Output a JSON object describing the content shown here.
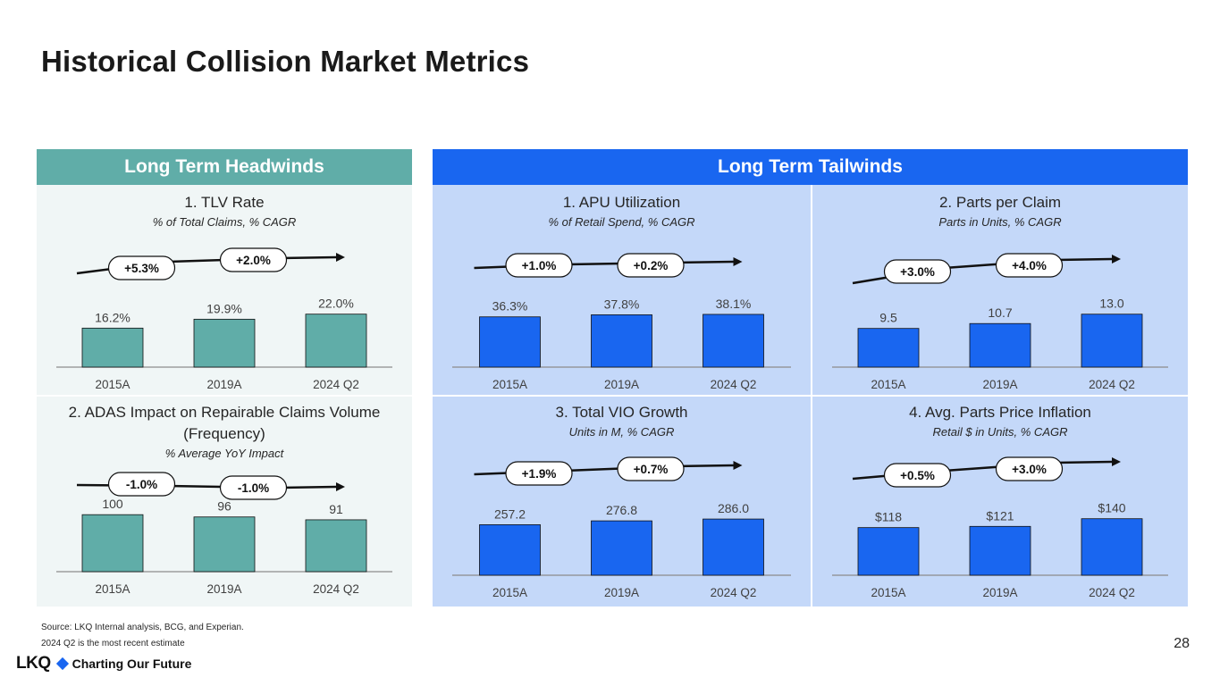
{
  "page": {
    "title": "Historical Collision Market Metrics",
    "page_number": "28"
  },
  "headers": {
    "headwinds": "Long Term Headwinds",
    "tailwinds": "Long Term Tailwinds"
  },
  "footnotes": {
    "source": "Source: LKQ Internal analysis, BCG, and Experian.",
    "note": "2024 Q2 is the most recent estimate"
  },
  "logo": {
    "wordmark": "LKQ",
    "tagline": "Charting Our Future"
  },
  "colors": {
    "headwind_bar": "#60ada8",
    "tailwind_bar": "#1966f0",
    "arrow": "#111111",
    "pill_border": "#111111"
  },
  "chart_data": [
    {
      "id": "tlv",
      "type": "bar",
      "title": "1. TLV Rate",
      "subtitle": "% of Total Claims, % CAGR",
      "categories": [
        "2015A",
        "2019A",
        "2024 Q2"
      ],
      "values": [
        16.2,
        19.9,
        22.0
      ],
      "labels": [
        "16.2%",
        "19.9%",
        "22.0%"
      ],
      "cagr": [
        "+5.3%",
        "+2.0%"
      ],
      "ylim": [
        0,
        23
      ]
    },
    {
      "id": "adas",
      "type": "bar",
      "title": "2. ADAS Impact on Repairable Claims Volume (Frequency)",
      "title_lines": [
        "2. ADAS Impact on Repairable Claims Volume",
        "(Frequency)"
      ],
      "subtitle": "% Average YoY Impact",
      "categories": [
        "2015A",
        "2019A",
        "2024 Q2"
      ],
      "values": [
        100,
        96,
        91
      ],
      "labels": [
        "100",
        "96",
        "91"
      ],
      "cagr": [
        "-1.0%",
        "-1.0%"
      ],
      "ylim": [
        0,
        105
      ]
    },
    {
      "id": "apu",
      "type": "bar",
      "title": "1. APU Utilization",
      "subtitle": "% of Retail Spend, % CAGR",
      "categories": [
        "2015A",
        "2019A",
        "2024 Q2"
      ],
      "values": [
        36.3,
        37.8,
        38.1
      ],
      "labels": [
        "36.3%",
        "37.8%",
        "38.1%"
      ],
      "cagr": [
        "+1.0%",
        "+0.2%"
      ],
      "ylim": [
        0,
        40
      ]
    },
    {
      "id": "ppc",
      "type": "bar",
      "title": "2. Parts per Claim",
      "subtitle": "Parts in Units, % CAGR",
      "categories": [
        "2015A",
        "2019A",
        "2024 Q2"
      ],
      "values": [
        9.5,
        10.7,
        13.0
      ],
      "labels": [
        "9.5",
        "10.7",
        "13.0"
      ],
      "cagr": [
        "+3.0%",
        "+4.0%"
      ],
      "ylim": [
        0,
        13.6
      ]
    },
    {
      "id": "vio",
      "type": "bar",
      "title": "3. Total VIO Growth",
      "subtitle": "Units in M, % CAGR",
      "categories": [
        "2015A",
        "2019A",
        "2024 Q2"
      ],
      "values": [
        257.2,
        276.8,
        286.0
      ],
      "labels": [
        "257.2",
        "276.8",
        "286.0"
      ],
      "cagr": [
        "+1.9%",
        "+0.7%"
      ],
      "ylim": [
        0,
        300
      ]
    },
    {
      "id": "price",
      "type": "bar",
      "title": "4. Avg. Parts Price Inflation",
      "subtitle": "Retail $ in Units, % CAGR",
      "categories": [
        "2015A",
        "2019A",
        "2024 Q2"
      ],
      "values": [
        118,
        121,
        140
      ],
      "labels": [
        "$118",
        "$121",
        "$140"
      ],
      "cagr": [
        "+0.5%",
        "+3.0%"
      ],
      "ylim": [
        0,
        146
      ]
    }
  ]
}
